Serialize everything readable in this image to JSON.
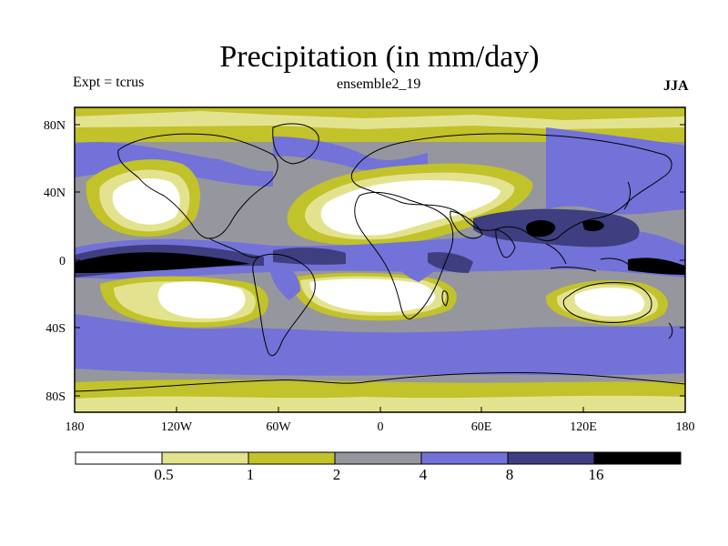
{
  "title": "Precipitation (in mm/day)",
  "experiment_label": "Expt = tcrus",
  "run_label": "ensemble2_19",
  "season_label": "JJA",
  "lat_ticks": [
    "80N",
    "40N",
    "0",
    "40S",
    "80S"
  ],
  "lon_ticks": [
    "180",
    "120W",
    "60W",
    "0",
    "60E",
    "120E",
    "180"
  ],
  "colorbar": {
    "labels": [
      "0.5",
      "1",
      "2",
      "4",
      "8",
      "16"
    ],
    "colors": [
      "#ffffff",
      "#e3e38f",
      "#c2c22b",
      "#96969e",
      "#7272d8",
      "#3e3e80",
      "#000000"
    ]
  },
  "colors": {
    "land_outline": "#000000",
    "frame": "#000000"
  }
}
